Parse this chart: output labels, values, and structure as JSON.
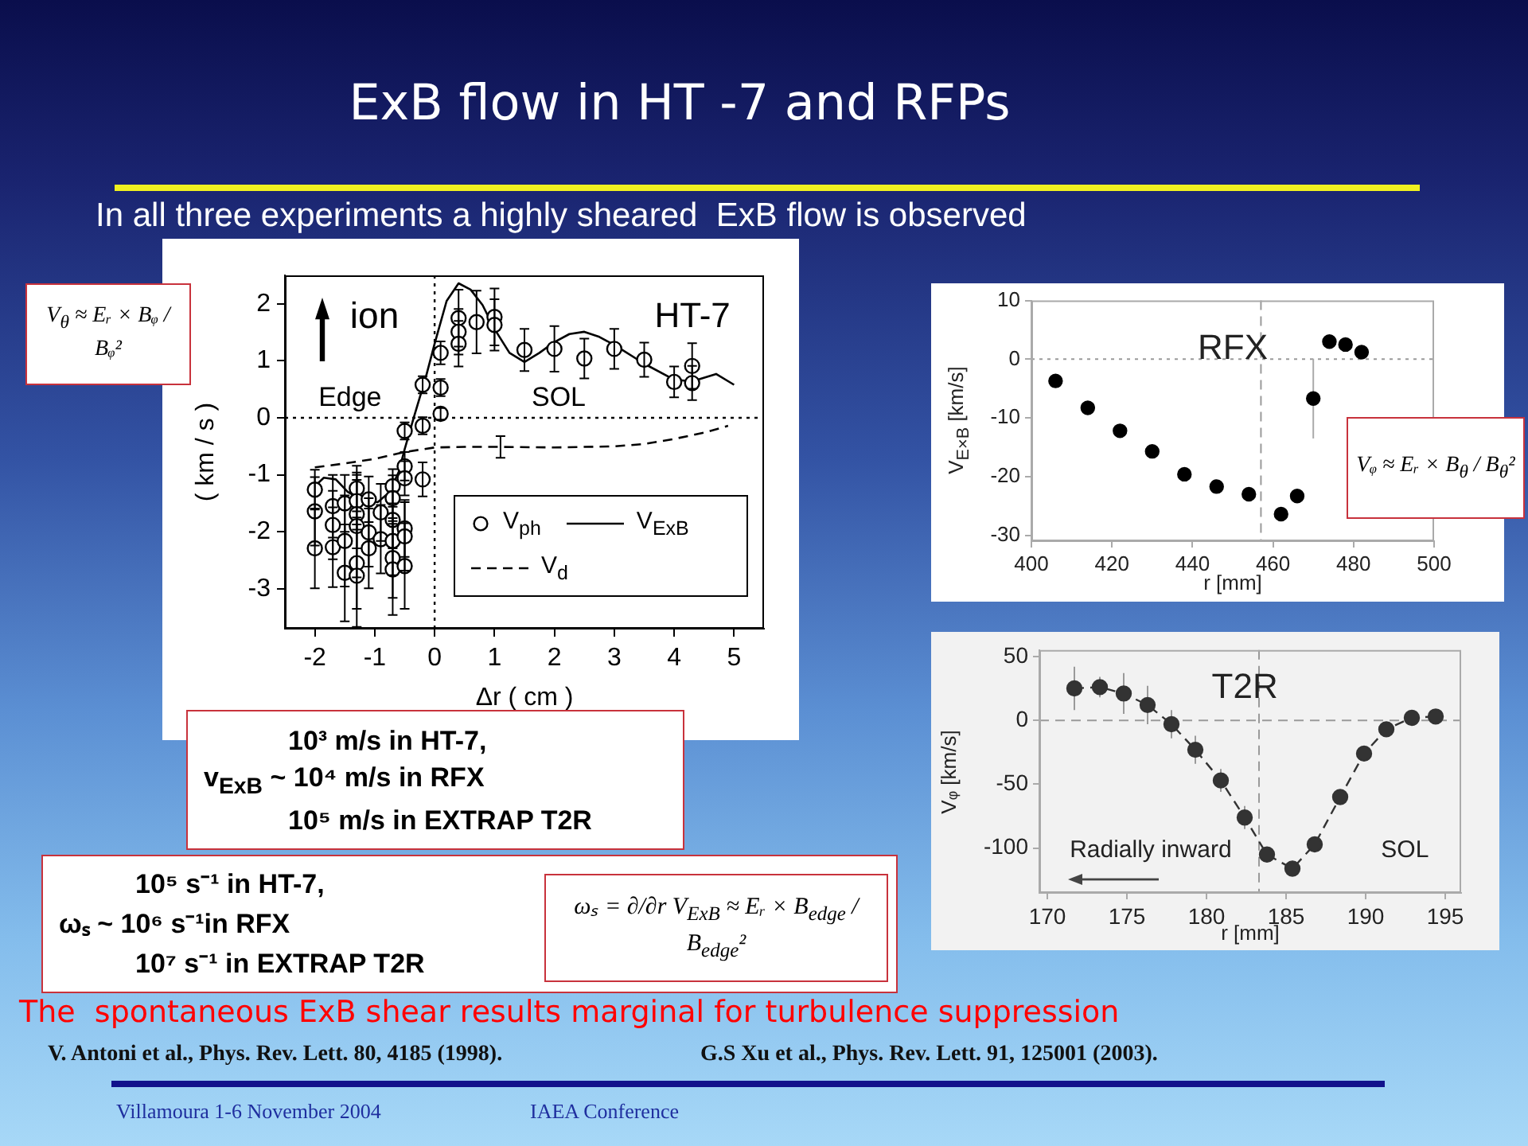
{
  "chart_data": [
    {
      "type": "other",
      "title": "ExB flow in HT -7 and RFPs",
      "subtitle": "In all three experiments a highly sheared  ExB flow is observed",
      "annotations": [
        "V$_{θ}$ ≈ Eᵣ × Bᵩ / Bᵩ²",
        "Vᵩ ≈ Eᵣ × B$_{θ}$ / B$_{θ}$²",
        "10³ m/s in HT-7,",
        "v$_{ExB}$ ~ 10⁴ m/s in RFX",
        "10⁵ m/s in EXTRAP T2R",
        "10⁵ s⁻¹ in HT-7,",
        "ωₛ ~ 10⁶ s⁻¹in RFX",
        "10⁷ s⁻¹ in EXTRAP T2R",
        "ωₛ = ∂/∂r V$_{ExB}$ ≈ Eᵣ × B$_{edge}$ / B$_{edge}$²",
        "The  spontaneous ExB shear results marginal for turbulence suppression",
        "V. Antoni et al., Phys. Rev. Lett. 80, 4185 (1998).",
        "G.S Xu et al., Phys. Rev. Lett. 91, 125001 (2003).",
        "Villamoura 1-6 November 2004",
        "IAEA Conference"
      ]
    },
    {
      "type": "scatter",
      "title": "HT-7",
      "xlabel": "Δr ( cm )",
      "ylabel": "( km / s )",
      "xlim": [
        -2.5,
        5.5
      ],
      "ylim": [
        -3.7,
        2.5
      ],
      "xticks": [
        -2,
        -1,
        0,
        1,
        2,
        3,
        4,
        5
      ],
      "yticks": [
        -3,
        -2,
        -1,
        0,
        1,
        2
      ],
      "legend": "bottom right",
      "annotations": [
        "ion",
        "Edge",
        "SOL"
      ],
      "ref_lines": [
        {
          "axis": "x",
          "value": 0,
          "color": "#000000",
          "line_style": "dotted"
        },
        {
          "axis": "y",
          "value": 0,
          "color": "#000000",
          "line_style": "dotted"
        }
      ],
      "series": [
        {
          "name": "V$_{ph}$",
          "type": "scatter",
          "color": "#000000",
          "marker": "circle",
          "x": [
            -2,
            -2,
            -2,
            -1.7,
            -1.7,
            -1.7,
            -1.5,
            -1.5,
            -1.5,
            -1.3,
            -1.3,
            -1.3,
            -1.3,
            -1.3,
            -1.3,
            -1.1,
            -1.1,
            -1.1,
            -0.9,
            -0.9,
            -0.7,
            -0.7,
            -0.7,
            -0.7,
            -0.7,
            -0.7,
            -0.5,
            -0.5,
            -0.5,
            -0.5,
            -0.5,
            -0.5,
            -0.2,
            -0.2,
            -0.2,
            0.1,
            0.1,
            0.1,
            0.4,
            0.4,
            0.4,
            0.7,
            1,
            1,
            1.5,
            2,
            2.5,
            3,
            3.5,
            4,
            4.3,
            4.3
          ],
          "values": [
            -1.26,
            -1.64,
            -2.29,
            -1.55,
            -1.88,
            -2.27,
            -1.5,
            -2.16,
            -2.72,
            -1.24,
            -1.46,
            -1.69,
            -1.9,
            -2.55,
            -2.77,
            -1.43,
            -2.01,
            -2.29,
            -1.66,
            -2.13,
            -1.2,
            -1.41,
            -1.79,
            -2.16,
            -2.46,
            -2.66,
            -0.23,
            -0.85,
            -1.06,
            -1.94,
            -2.08,
            -2.6,
            0.58,
            -0.14,
            -1.08,
            1.14,
            0.53,
            0.07,
            1.75,
            1.51,
            1.3,
            1.68,
            1.77,
            1.63,
            1.19,
            1.21,
            1.04,
            1.21,
            1.02,
            0.63,
            0.91,
            0.61
          ],
          "errors": [
            0.35,
            0.6,
            0.7,
            0.55,
            0.6,
            0.7,
            0.5,
            0.8,
            0.85,
            0.4,
            0.5,
            0.6,
            0.9,
            0.8,
            0.9,
            0.4,
            0.6,
            0.7,
            0.5,
            0.6,
            0.3,
            0.4,
            0.5,
            0.6,
            0.7,
            0.8,
            0.15,
            0.25,
            0.3,
            0.5,
            0.6,
            0.75,
            0.15,
            0.15,
            0.3,
            0.2,
            0.15,
            0.1,
            0.5,
            0.4,
            0.4,
            0.55,
            0.5,
            0.45,
            0.37,
            0.4,
            0.35,
            0.35,
            0.3,
            0.27,
            0.4,
            0.3
          ]
        },
        {
          "name": "V$_{ExB}$",
          "type": "line",
          "color": "#000000",
          "marker": "none",
          "x": [
            -2,
            -1.85,
            -1.65,
            -1.45,
            -1.2,
            -0.95,
            -0.75,
            -0.6,
            -0.5,
            -0.35,
            -0.15,
            0,
            0.2,
            0.4,
            0.6,
            0.8,
            1,
            1.25,
            1.5,
            1.75,
            2,
            2.25,
            2.5,
            2.75,
            3,
            3.5,
            4,
            4.3,
            4.7,
            5
          ],
          "values": [
            -1.2,
            -1.05,
            -1.08,
            -1.3,
            -1.45,
            -1.48,
            -1.3,
            -0.95,
            -0.55,
            0,
            0.7,
            1.3,
            2.05,
            2.36,
            2.25,
            1.98,
            1.56,
            1.14,
            0.98,
            1.14,
            1.33,
            1.47,
            1.51,
            1.42,
            1.28,
            0.95,
            0.67,
            0.64,
            0.77,
            0.58
          ]
        },
        {
          "name": "V$_{d}$",
          "type": "line",
          "color": "#000000",
          "marker": "none",
          "line_style": "dashed",
          "x": [
            -2,
            -1.5,
            -1,
            -0.5,
            0,
            0.5,
            1.1,
            2,
            3,
            3.5,
            4,
            4.5,
            4.9
          ],
          "values": [
            -0.87,
            -0.8,
            -0.72,
            -0.6,
            -0.52,
            -0.51,
            -0.51,
            -0.52,
            -0.5,
            -0.46,
            -0.37,
            -0.26,
            -0.14
          ],
          "errors": [
            null,
            null,
            null,
            null,
            null,
            null,
            0.19,
            null,
            null,
            null,
            null,
            null,
            null
          ]
        }
      ]
    },
    {
      "type": "scatter",
      "title": "RFX",
      "xlabel": "r [mm]",
      "ylabel": "V$_{E×B}$ [km/s]",
      "xlim": [
        400,
        500
      ],
      "ylim": [
        -31,
        10
      ],
      "xticks": [
        400,
        420,
        440,
        460,
        480,
        500
      ],
      "yticks": [
        -30,
        -20,
        -10,
        0,
        10
      ],
      "color": "#000000",
      "marker": "circle",
      "ref_lines": [
        {
          "axis": "x",
          "value": 457,
          "color": "#9a9a9a",
          "line_style": "dashed"
        },
        {
          "axis": "y",
          "value": 0,
          "color": "#9a9a9a",
          "line_style": "dotted"
        }
      ],
      "x": [
        406,
        414,
        422,
        430,
        438,
        446,
        454,
        462,
        466,
        470,
        474,
        478,
        482
      ],
      "values": [
        -3.7,
        -8.3,
        -12.2,
        -15.7,
        -19.6,
        -21.7,
        -23,
        -26.4,
        -23.3,
        -6.7,
        3,
        2.5,
        1.2
      ],
      "errors": [
        null,
        null,
        null,
        null,
        null,
        null,
        null,
        null,
        null,
        6.8,
        null,
        null,
        null
      ]
    },
    {
      "type": "line",
      "title": "T2R",
      "xlabel": "r [mm]",
      "ylabel": "Vᵩ [km/s]",
      "xlim": [
        169.5,
        196
      ],
      "ylim": [
        -135,
        55
      ],
      "xticks": [
        170,
        175,
        180,
        185,
        190,
        195
      ],
      "yticks": [
        -100,
        -50,
        0,
        50
      ],
      "color": "#333333",
      "marker": "circle",
      "line_style": "dashed",
      "annotations": [
        "Radially inward",
        "SOL"
      ],
      "ref_lines": [
        {
          "axis": "x",
          "value": 183.3,
          "color": "#9a9a9a",
          "line_style": "dashed"
        },
        {
          "axis": "y",
          "value": 0,
          "color": "#9a9a9a",
          "line_style": "dashed"
        }
      ],
      "x": [
        171.7,
        173.3,
        174.8,
        176.3,
        177.8,
        179.3,
        180.9,
        182.4,
        183.8,
        185.4,
        186.8,
        188.4,
        189.9,
        191.3,
        192.9,
        194.4
      ],
      "values": [
        25,
        26,
        21,
        12,
        -3,
        -23,
        -47,
        -76,
        -105,
        -116,
        -97,
        -60,
        -26,
        -7,
        2,
        3
      ],
      "errors": [
        17,
        8,
        16,
        15,
        11,
        11,
        9,
        9,
        null,
        6,
        null,
        null,
        null,
        null,
        null,
        null
      ]
    }
  ]
}
